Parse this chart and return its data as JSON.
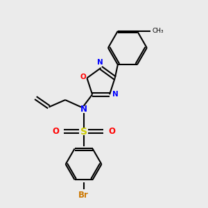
{
  "background_color": "#ebebeb",
  "bond_color": "#000000",
  "bond_width": 1.5,
  "figsize": [
    3.0,
    3.0
  ],
  "dpi": 100,
  "colors": {
    "N": "#0000ff",
    "O": "#ff0000",
    "S": "#cccc00",
    "Br": "#cc7700",
    "C": "#000000"
  },
  "xlim": [
    0,
    10
  ],
  "ylim": [
    0,
    10
  ]
}
